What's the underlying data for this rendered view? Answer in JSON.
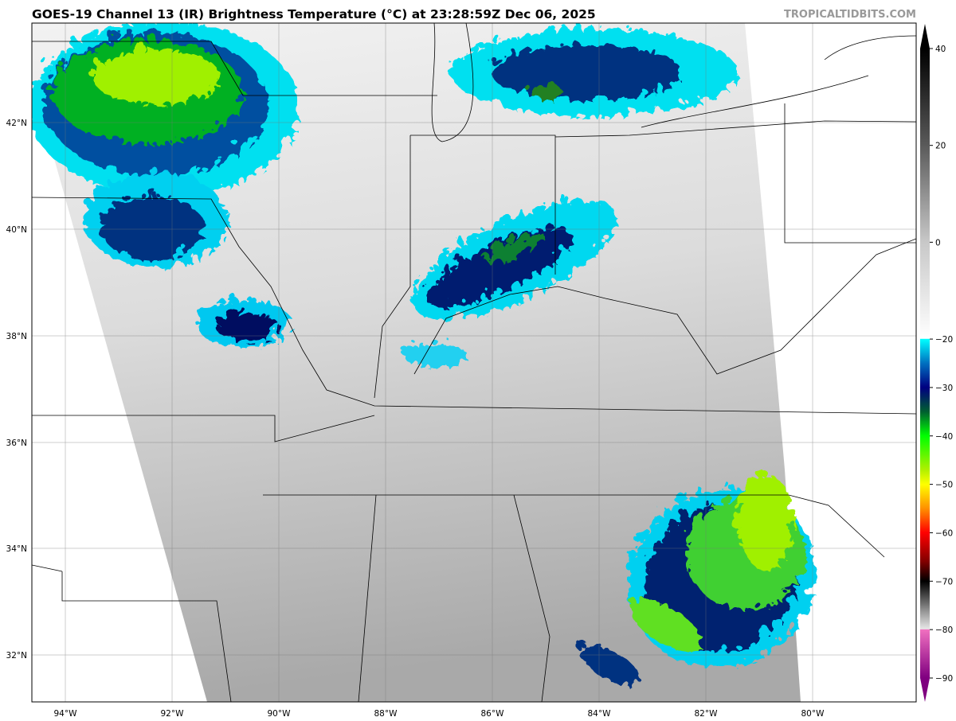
{
  "header": {
    "title": "GOES-19 Channel 13 (IR) Brightness Temperature (°C) at 23:28:59Z Dec 06, 2025",
    "watermark": "TROPICALTIDBITS.COM"
  },
  "map": {
    "longitude_labels": [
      "94°W",
      "92°W",
      "90°W",
      "88°W",
      "86°W",
      "84°W",
      "82°W",
      "80°W"
    ],
    "latitude_labels": [
      "42°N",
      "40°N",
      "38°N",
      "36°N",
      "34°N",
      "32°N"
    ],
    "grid": true
  },
  "colorbar": {
    "range": [
      -90,
      40
    ],
    "tick_labels": [
      "40",
      "20",
      "0",
      "−20",
      "−30",
      "−40",
      "−50",
      "−60",
      "−70",
      "−80",
      "−90"
    ],
    "stops": [
      {
        "value": 40,
        "color": "#000000"
      },
      {
        "value": 20,
        "color": "#5a5a5a"
      },
      {
        "value": 0,
        "color": "#c8c8c8"
      },
      {
        "value": -19.9,
        "color": "#ffffff"
      },
      {
        "value": -20,
        "color": "#00ffff"
      },
      {
        "value": -25,
        "color": "#0070c0"
      },
      {
        "value": -30,
        "color": "#000080"
      },
      {
        "value": -35,
        "color": "#006030"
      },
      {
        "value": -40,
        "color": "#00ff00"
      },
      {
        "value": -47,
        "color": "#b0f000"
      },
      {
        "value": -50,
        "color": "#ffff00"
      },
      {
        "value": -55,
        "color": "#ff9000"
      },
      {
        "value": -60,
        "color": "#ff0000"
      },
      {
        "value": -66,
        "color": "#800000"
      },
      {
        "value": -70,
        "color": "#000000"
      },
      {
        "value": -76,
        "color": "#909090"
      },
      {
        "value": -79.9,
        "color": "#e8e8e8"
      },
      {
        "value": -80,
        "color": "#f070c0"
      },
      {
        "value": -90,
        "color": "#800080"
      }
    ]
  }
}
